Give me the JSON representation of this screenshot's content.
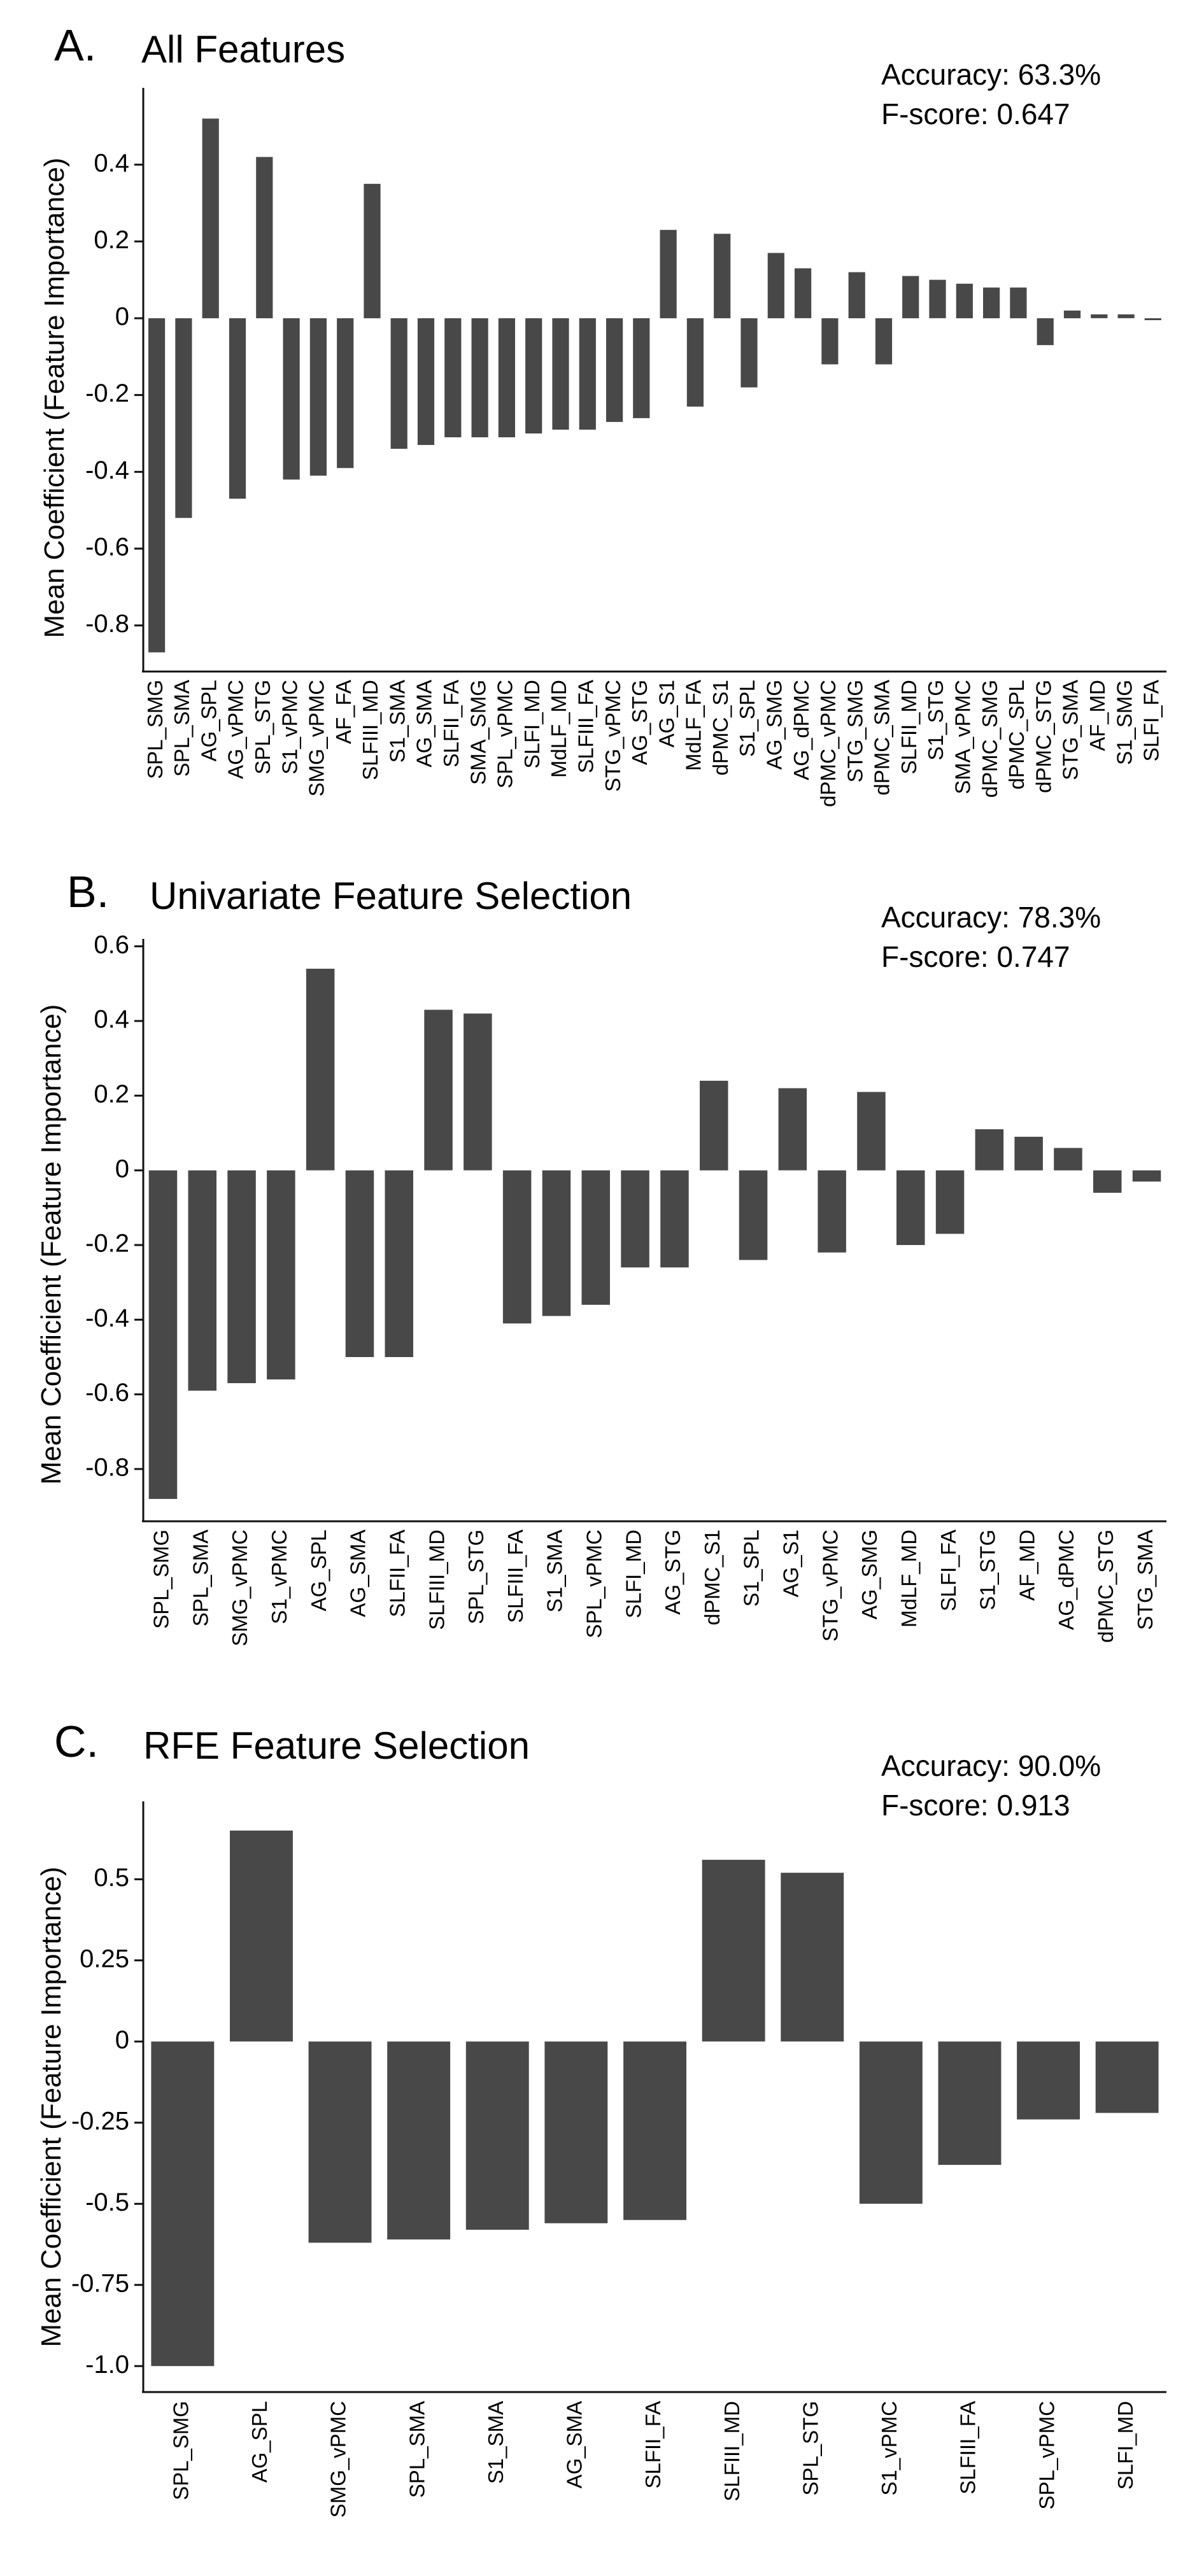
{
  "chart_data": [
    {
      "type": "bar",
      "letter": "A.",
      "title": "All Features",
      "accuracy": "Accuracy: 63.3%",
      "fscore": "F-score: 0.647",
      "ylabel": "Mean Coefficient (Feature Importance)",
      "ylim": [
        -0.92,
        0.6
      ],
      "yticks": [
        0.4,
        0.2,
        0,
        -0.2,
        -0.4,
        -0.6,
        -0.8
      ],
      "ytick_labels": [
        "0.4",
        "0.2",
        "0",
        "-0.2",
        "-0.4",
        "-0.6",
        "-0.8"
      ],
      "categories": [
        "SPL_SMG",
        "SPL_SMA",
        "AG_SPL",
        "AG_vPMC",
        "SPL_STG",
        "S1_vPMC",
        "SMG_vPMC",
        "AF_FA",
        "SLFIII_MD",
        "S1_SMA",
        "AG_SMA",
        "SLFII_FA",
        "SMA_SMG",
        "SPL_vPMC",
        "SLFI_MD",
        "MdLF_MD",
        "SLFIII_FA",
        "STG_vPMC",
        "AG_STG",
        "AG_S1",
        "MdLF_FA",
        "dPMC_S1",
        "S1_SPL",
        "AG_SMG",
        "AG_dPMC",
        "dPMC_vPMC",
        "STG_SMG",
        "dPMC_SMA",
        "SLFII_MD",
        "S1_STG",
        "SMA_vPMC",
        "dPMC_SMG",
        "dPMC_SPL",
        "dPMC_STG",
        "STG_SMA",
        "AF_MD",
        "S1_SMG",
        "SLFI_FA"
      ],
      "values": [
        -0.87,
        -0.52,
        0.52,
        -0.47,
        0.42,
        -0.42,
        -0.41,
        -0.39,
        0.35,
        -0.34,
        -0.33,
        -0.31,
        -0.31,
        -0.31,
        -0.3,
        -0.29,
        -0.29,
        -0.27,
        -0.26,
        0.23,
        -0.23,
        0.22,
        -0.18,
        0.17,
        0.13,
        -0.12,
        0.12,
        -0.12,
        0.11,
        0.1,
        0.09,
        0.08,
        0.08,
        -0.07,
        0.02,
        0.01,
        0.01,
        -0.005
      ]
    },
    {
      "type": "bar",
      "letter": "B.",
      "title": "Univariate Feature Selection",
      "accuracy": "Accuracy: 78.3%",
      "fscore": "F-score: 0.747",
      "ylabel": "Mean Coefficient (Feature Importance)",
      "ylim": [
        -0.94,
        0.62
      ],
      "yticks": [
        0.6,
        0.4,
        0.2,
        0,
        -0.2,
        -0.4,
        -0.6,
        -0.8
      ],
      "ytick_labels": [
        "0.6",
        "0.4",
        "0.2",
        "0",
        "-0.2",
        "-0.4",
        "-0.6",
        "-0.8"
      ],
      "categories": [
        "SPL_SMG",
        "SPL_SMA",
        "SMG_vPMC",
        "S1_vPMC",
        "AG_SPL",
        "AG_SMA",
        "SLFII_FA",
        "SLFIII_MD",
        "SPL_STG",
        "SLFIII_FA",
        "S1_SMA",
        "SPL_vPMC",
        "SLFI_MD",
        "AG_STG",
        "dPMC_S1",
        "S1_SPL",
        "AG_S1",
        "STG_vPMC",
        "AG_SMG",
        "MdLF_MD",
        "SLFI_FA",
        "S1_STG",
        "AF_MD",
        "AG_dPMC",
        "dPMC_STG",
        "STG_SMA"
      ],
      "values": [
        -0.88,
        -0.59,
        -0.57,
        -0.56,
        0.54,
        -0.5,
        -0.5,
        0.43,
        0.42,
        -0.41,
        -0.39,
        -0.36,
        -0.26,
        -0.26,
        0.24,
        -0.24,
        0.22,
        -0.22,
        0.21,
        -0.2,
        -0.17,
        0.11,
        0.09,
        0.06,
        -0.06,
        -0.03
      ]
    },
    {
      "type": "bar",
      "letter": "C.",
      "title": "RFE Feature Selection",
      "accuracy": "Accuracy: 90.0%",
      "fscore": "F-score: 0.913",
      "ylabel": "Mean Coefficient (Feature Importance)",
      "ylim": [
        -1.08,
        0.74
      ],
      "yticks": [
        0.5,
        0.25,
        0,
        -0.25,
        -0.5,
        -0.75,
        -1.0
      ],
      "ytick_labels": [
        "0.5",
        "0.25",
        "0",
        "-0.25",
        "-0.5",
        "-0.75",
        "-1.0"
      ],
      "categories": [
        "SPL_SMG",
        "AG_SPL",
        "SMG_vPMC",
        "SPL_SMA",
        "S1_SMA",
        "AG_SMA",
        "SLFII_FA",
        "SLFIII_MD",
        "SPL_STG",
        "S1_vPMC",
        "SLFIII_FA",
        "SPL_vPMC",
        "SLFI_MD"
      ],
      "values": [
        -1.0,
        0.65,
        -0.62,
        -0.61,
        -0.58,
        -0.56,
        -0.55,
        0.56,
        0.52,
        -0.5,
        -0.38,
        -0.24,
        -0.22
      ]
    }
  ]
}
